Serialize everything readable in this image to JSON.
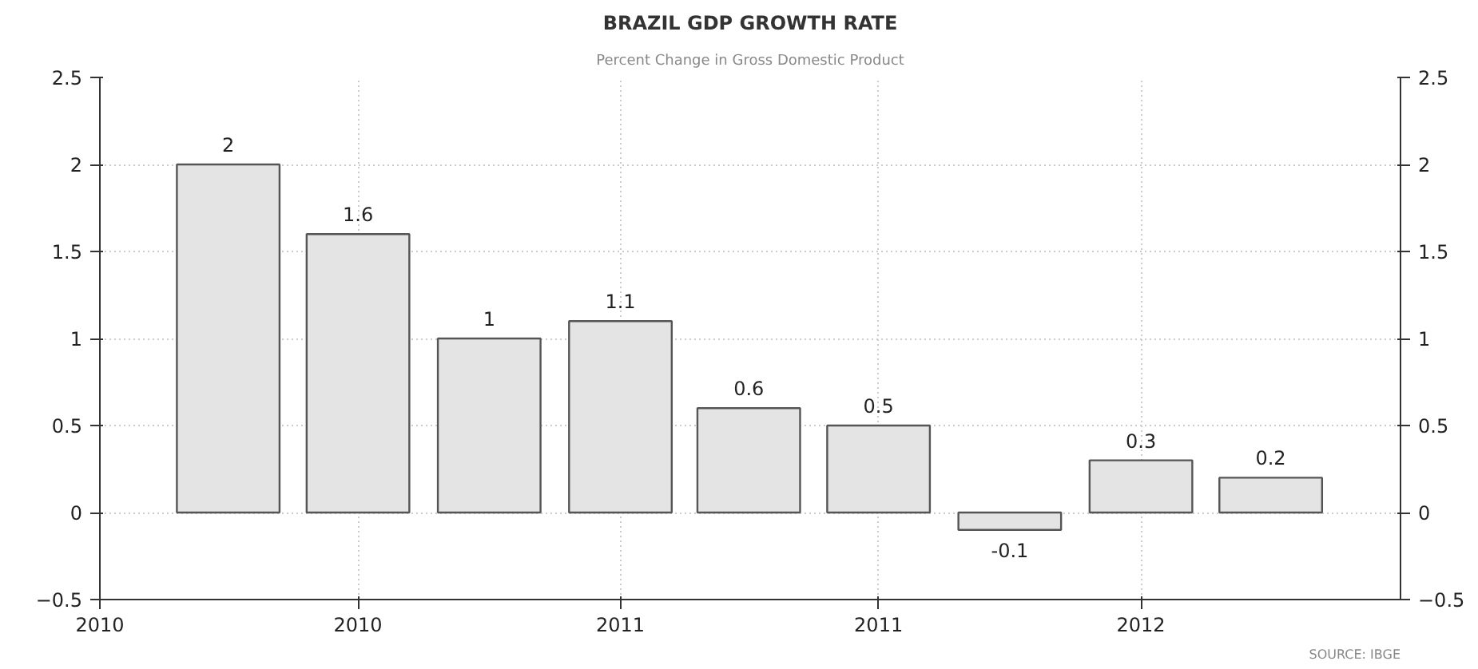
{
  "chart_data": {
    "type": "bar",
    "title": "BRAZIL GDP GROWTH RATE",
    "subtitle": "Percent Change in Gross Domestic Product",
    "x": [
      "2010-04",
      "2010-07",
      "2010-10",
      "2011-01",
      "2011-04",
      "2011-07",
      "2011-10",
      "2012-01",
      "2012-04"
    ],
    "values": [
      2,
      1.6,
      1,
      1.1,
      0.6,
      0.5,
      -0.1,
      0.3,
      0.2
    ],
    "color": "#e4e4e4",
    "data_labels": true,
    "xlim": [
      "2010-01",
      "2012-07"
    ],
    "xticks": [
      {
        "value": "2010-01",
        "label": "2010"
      },
      {
        "value": "2010-07",
        "label": "2010"
      },
      {
        "value": "2011-01",
        "label": "2011"
      },
      {
        "value": "2011-07",
        "label": "2011"
      },
      {
        "value": "2012-01",
        "label": "2012"
      }
    ],
    "ylim": [
      -0.5,
      2.5
    ],
    "yticks": [
      -0.5,
      0,
      0.5,
      1,
      1.5,
      2,
      2.5
    ],
    "y2lim": [
      -0.5,
      2.5
    ],
    "y2ticks": [
      -0.5,
      0,
      0.5,
      1,
      1.5,
      2,
      2.5
    ],
    "grid": true,
    "annotations": [
      "SOURCE: IBGE"
    ]
  }
}
